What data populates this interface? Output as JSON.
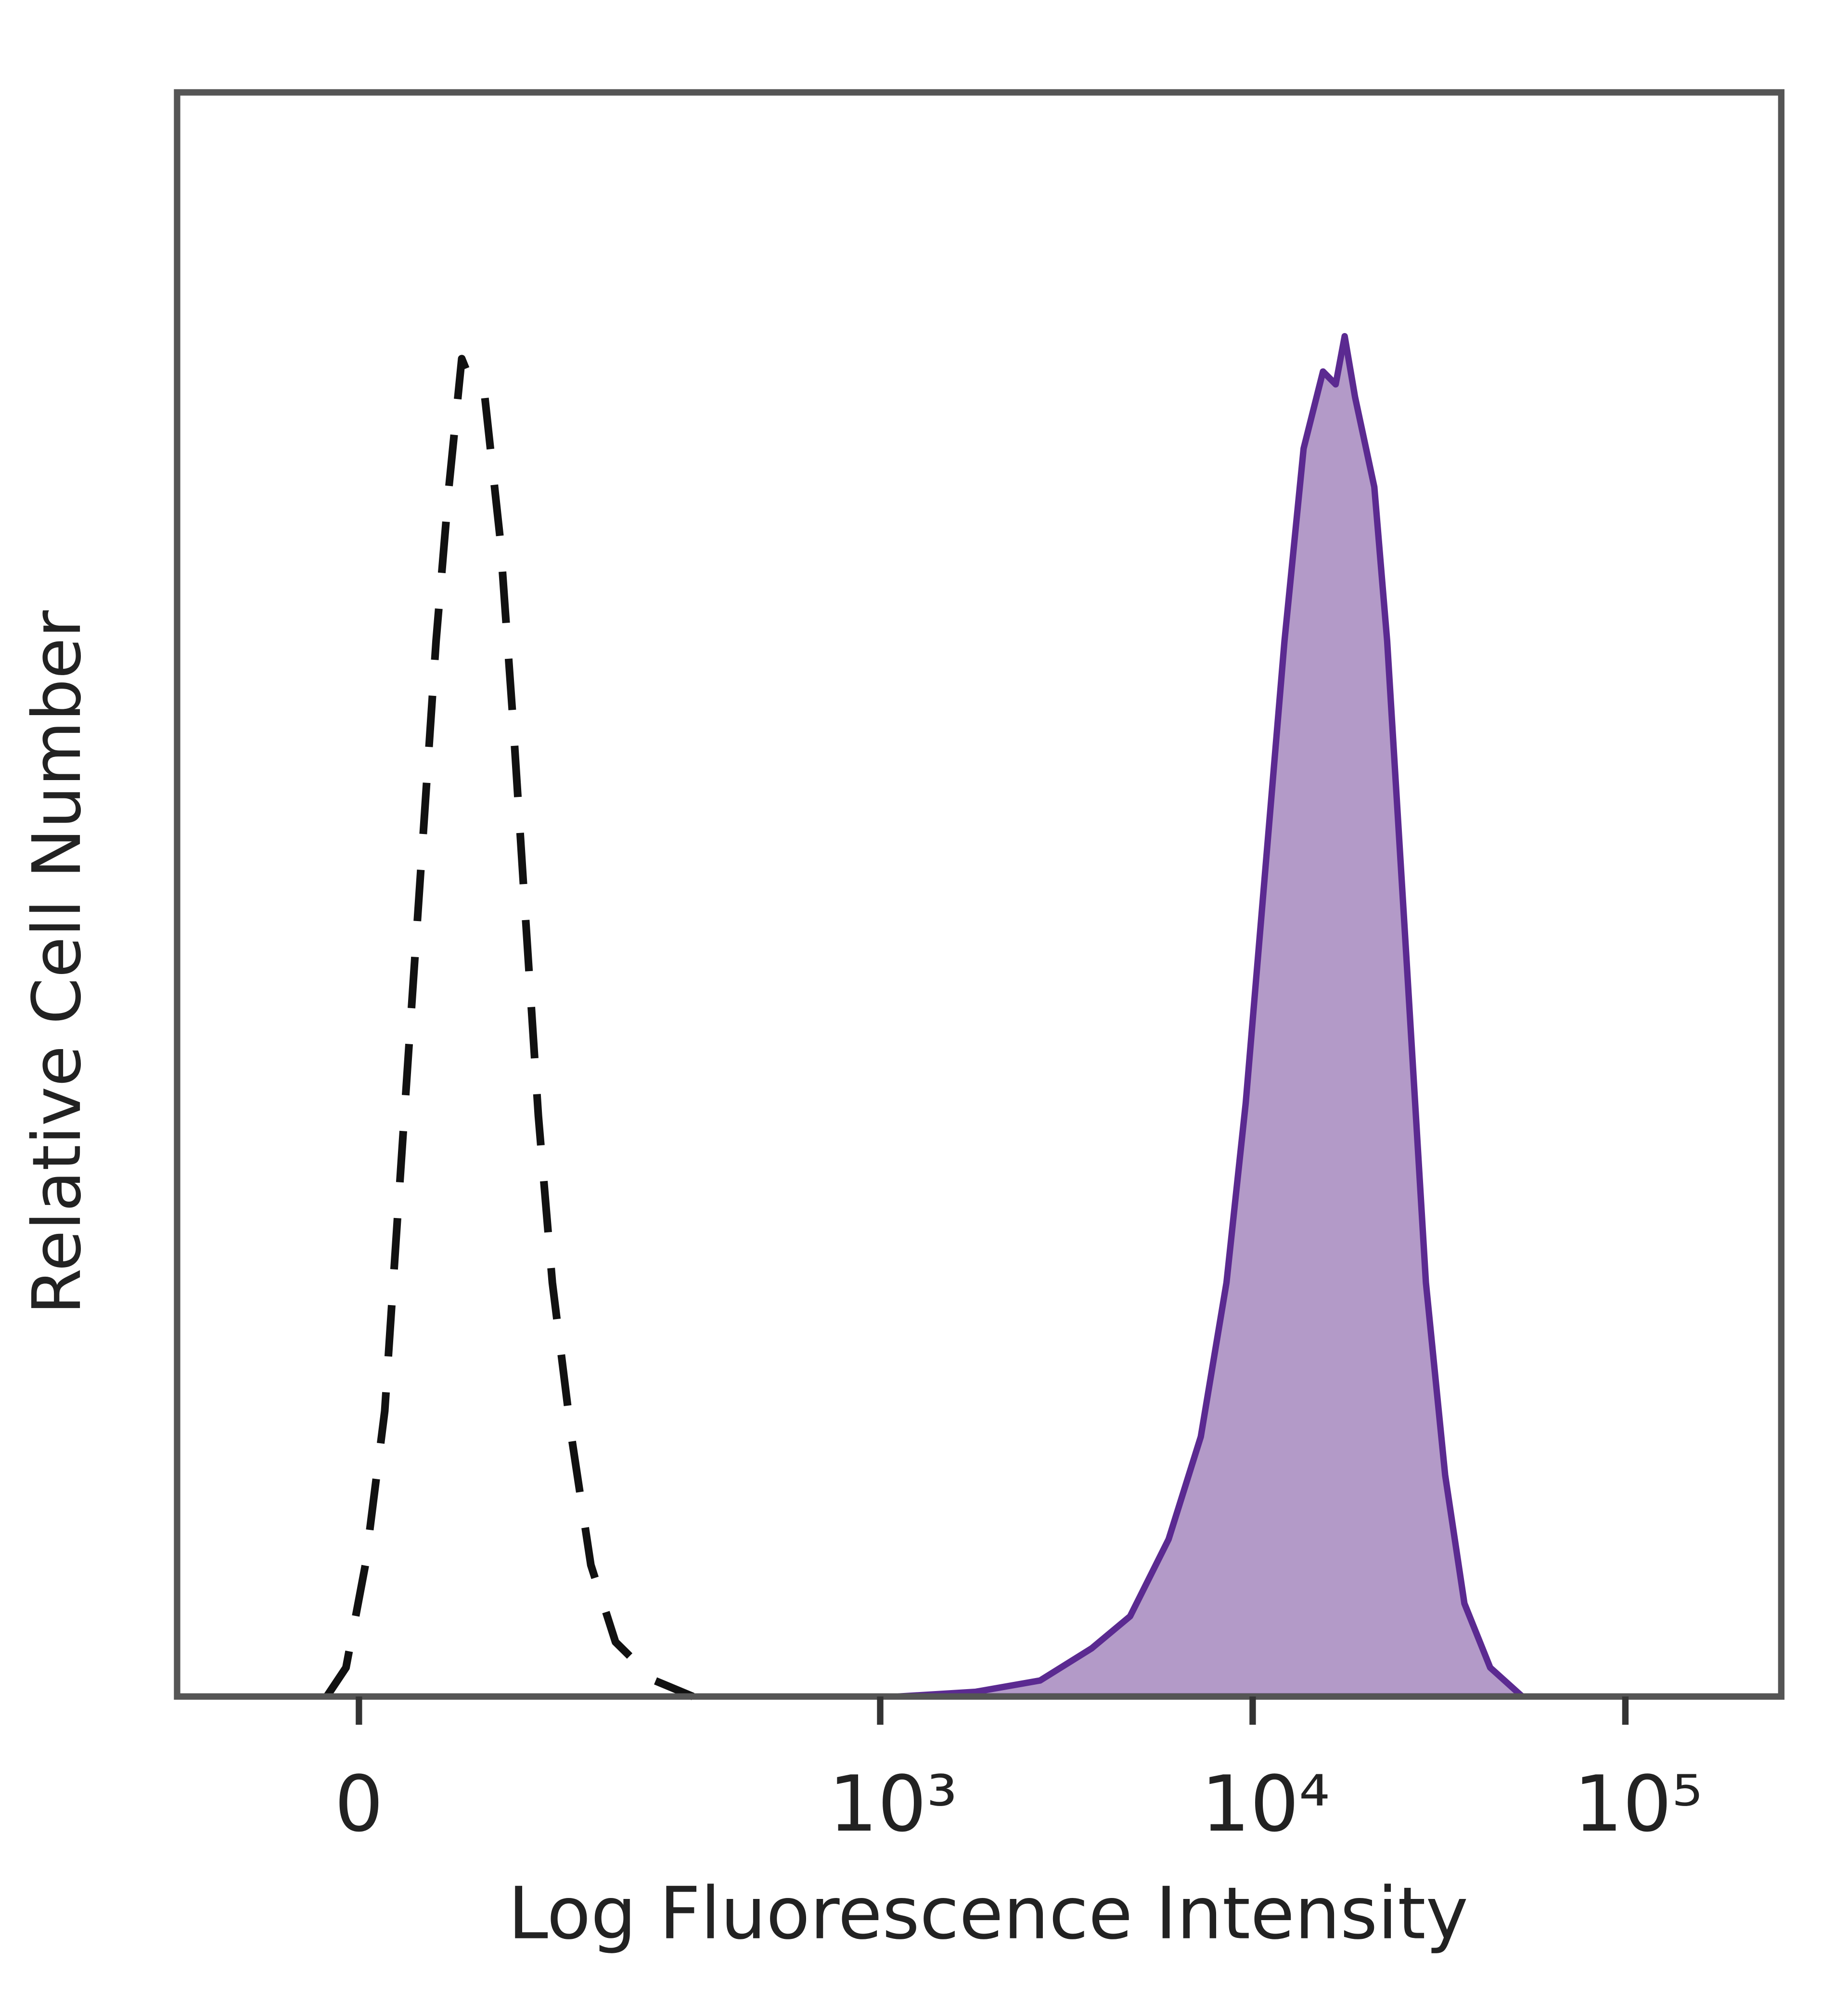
{
  "chart_data": {
    "type": "histogram-overlay",
    "x_label": "Log Fluorescence Intensity",
    "y_label": "Relative Cell Number",
    "xscale": "arcsinh",
    "xscale_cofactor": 80,
    "xlim": [
      -110,
      262000
    ],
    "xticks": [
      0,
      {
        "value": 1000,
        "label": "10³"
      },
      {
        "value": 10000,
        "label": "10⁴"
      },
      {
        "value": 100000,
        "label": "10⁵"
      }
    ],
    "ylim": [
      0,
      100
    ],
    "series": [
      {
        "style": "dashed",
        "color": "#111111",
        "x": [
          -16,
          -6.4,
          3.2,
          12.8,
          19.2,
          25.8,
          32.6,
          39.6,
          46.8,
          54.3,
          60.6,
          68.7,
          79,
          88,
          98,
          108,
          120,
          138,
          158,
          187,
          242,
          310
        ],
        "values": [
          0,
          1.8,
          8.2,
          17.8,
          29.8,
          41.8,
          53.8,
          65.8,
          75.4,
          83.4,
          81.8,
          81,
          72.2,
          61,
          48.2,
          36.2,
          25.8,
          16.2,
          8.2,
          3.4,
          1,
          0
        ]
      },
      {
        "style": "filled",
        "color": "#5b2a91",
        "fill": "#b39ac8",
        "x": [
          1122,
          1808,
          2690,
          3696,
          4690,
          5950,
          7260,
          8510,
          9580,
          10800,
          12170,
          13700,
          15440,
          16700,
          17660,
          18830,
          21200,
          22960,
          25900,
          29170,
          32850,
          37000,
          43400,
          52900
        ],
        "values": [
          0,
          0.3,
          1,
          3,
          5,
          9.8,
          16.2,
          25.8,
          37,
          51.4,
          65.8,
          77.8,
          82.6,
          81.8,
          84.8,
          81,
          75.4,
          65.8,
          45.8,
          25.8,
          13.8,
          5.8,
          1.8,
          0
        ]
      }
    ]
  }
}
